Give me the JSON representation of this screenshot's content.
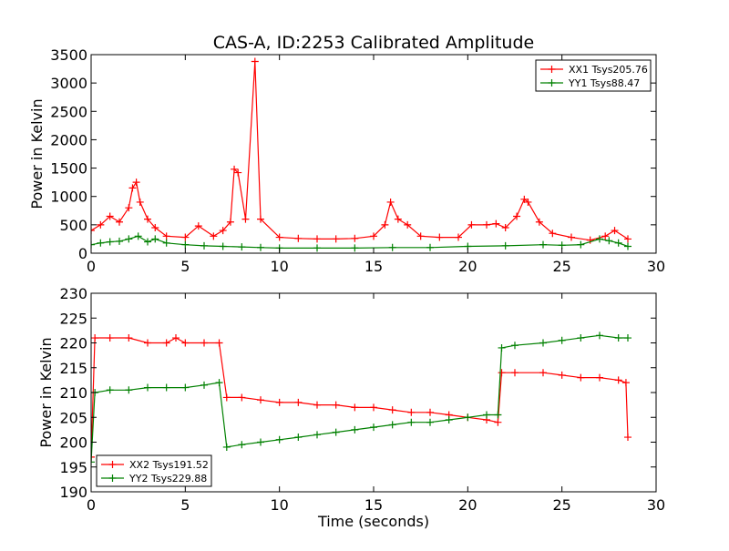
{
  "figure": {
    "title": "CAS-A, ID:2253 Calibrated Amplitude"
  },
  "colors": {
    "xx": "#ff0000",
    "yy": "#008000",
    "axes": "#000000",
    "background": "#ffffff"
  },
  "chart_data": [
    {
      "type": "scatter",
      "title": "CAS-A, ID:2253 Calibrated Amplitude",
      "xlabel": "",
      "ylabel": "Power in Kelvin",
      "xlim": [
        0,
        30
      ],
      "ylim": [
        0,
        3500
      ],
      "xticks": [
        0,
        5,
        10,
        15,
        20,
        25,
        30
      ],
      "yticks": [
        0,
        500,
        1000,
        1500,
        2000,
        2500,
        3000,
        3500
      ],
      "grid": false,
      "legend_position": "top-right",
      "marker": "plus with vertical error bar",
      "series": [
        {
          "name": "XX1 Tsys205.76",
          "color": "#ff0000",
          "x": [
            0.0,
            0.5,
            1.0,
            1.5,
            2.0,
            2.2,
            2.4,
            2.6,
            3.0,
            3.4,
            4.0,
            5.0,
            5.7,
            6.5,
            7.0,
            7.4,
            7.6,
            7.8,
            8.2,
            8.7,
            9.0,
            10.0,
            11.0,
            12.0,
            13.0,
            14.0,
            15.0,
            15.6,
            15.9,
            16.3,
            16.8,
            17.5,
            18.5,
            19.5,
            20.2,
            21.0,
            21.5,
            22.0,
            22.6,
            23.0,
            23.2,
            23.8,
            24.5,
            25.5,
            26.5,
            27.3,
            27.8,
            28.5
          ],
          "y": [
            400,
            500,
            650,
            550,
            800,
            1150,
            1250,
            900,
            600,
            450,
            300,
            280,
            480,
            300,
            400,
            550,
            1480,
            1420,
            600,
            3380,
            600,
            280,
            260,
            250,
            250,
            260,
            300,
            500,
            900,
            600,
            500,
            300,
            280,
            280,
            500,
            500,
            520,
            450,
            650,
            950,
            900,
            550,
            350,
            280,
            230,
            300,
            400,
            250
          ]
        },
        {
          "name": "YY1 Tsys88.47",
          "color": "#008000",
          "x": [
            0.0,
            0.5,
            1.0,
            1.5,
            2.0,
            2.5,
            3.0,
            3.4,
            4.0,
            5.0,
            6.0,
            7.0,
            8.0,
            9.0,
            10.0,
            12.0,
            14.0,
            16.0,
            18.0,
            20.0,
            22.0,
            24.0,
            25.0,
            26.0,
            27.0,
            27.5,
            28.0,
            28.5
          ],
          "y": [
            150,
            180,
            200,
            210,
            250,
            300,
            200,
            250,
            180,
            150,
            130,
            120,
            110,
            100,
            90,
            90,
            90,
            100,
            100,
            120,
            130,
            150,
            140,
            150,
            250,
            220,
            180,
            120
          ]
        }
      ]
    },
    {
      "type": "scatter",
      "title": "",
      "xlabel": "Time (seconds)",
      "ylabel": "Power in Kelvin",
      "xlim": [
        0,
        30
      ],
      "ylim": [
        190,
        230
      ],
      "xticks": [
        0,
        5,
        10,
        15,
        20,
        25,
        30
      ],
      "yticks": [
        190,
        195,
        200,
        205,
        210,
        215,
        220,
        225,
        230
      ],
      "grid": false,
      "legend_position": "bottom-left",
      "marker": "plus with vertical error bar",
      "series": [
        {
          "name": "XX2 Tsys191.52",
          "color": "#ff0000",
          "x": [
            0.0,
            0.2,
            1.0,
            2.0,
            3.0,
            4.0,
            4.5,
            5.0,
            6.0,
            6.8,
            7.2,
            8.0,
            9.0,
            10.0,
            11.0,
            12.0,
            13.0,
            14.0,
            15.0,
            16.0,
            17.0,
            18.0,
            19.0,
            20.0,
            21.0,
            21.6,
            21.8,
            22.5,
            24.0,
            25.0,
            26.0,
            27.0,
            28.0,
            28.4,
            28.5
          ],
          "y": [
            197,
            221,
            221,
            221,
            220,
            220,
            221,
            220,
            220,
            220,
            209,
            209,
            208.5,
            208,
            208,
            207.5,
            207.5,
            207,
            207,
            206.5,
            206,
            206,
            205.5,
            205,
            204.5,
            204,
            214,
            214,
            214,
            213.5,
            213,
            213,
            212.5,
            212,
            201
          ]
        },
        {
          "name": "YY2 Tsys229.88",
          "color": "#008000",
          "x": [
            0.0,
            0.2,
            1.0,
            2.0,
            3.0,
            4.0,
            5.0,
            6.0,
            6.8,
            7.2,
            8.0,
            9.0,
            10.0,
            11.0,
            12.0,
            13.0,
            14.0,
            15.0,
            16.0,
            17.0,
            18.0,
            19.0,
            20.0,
            21.0,
            21.6,
            21.8,
            22.5,
            24.0,
            25.0,
            26.0,
            27.0,
            28.0,
            28.5
          ],
          "y": [
            196,
            210,
            210.5,
            210.5,
            211,
            211,
            211,
            211.5,
            212,
            199,
            199.5,
            200,
            200.5,
            201,
            201.5,
            202,
            202.5,
            203,
            203.5,
            204,
            204,
            204.5,
            205,
            205.5,
            205.5,
            219,
            219.5,
            220,
            220.5,
            221,
            221.5,
            221,
            221
          ]
        }
      ]
    }
  ]
}
